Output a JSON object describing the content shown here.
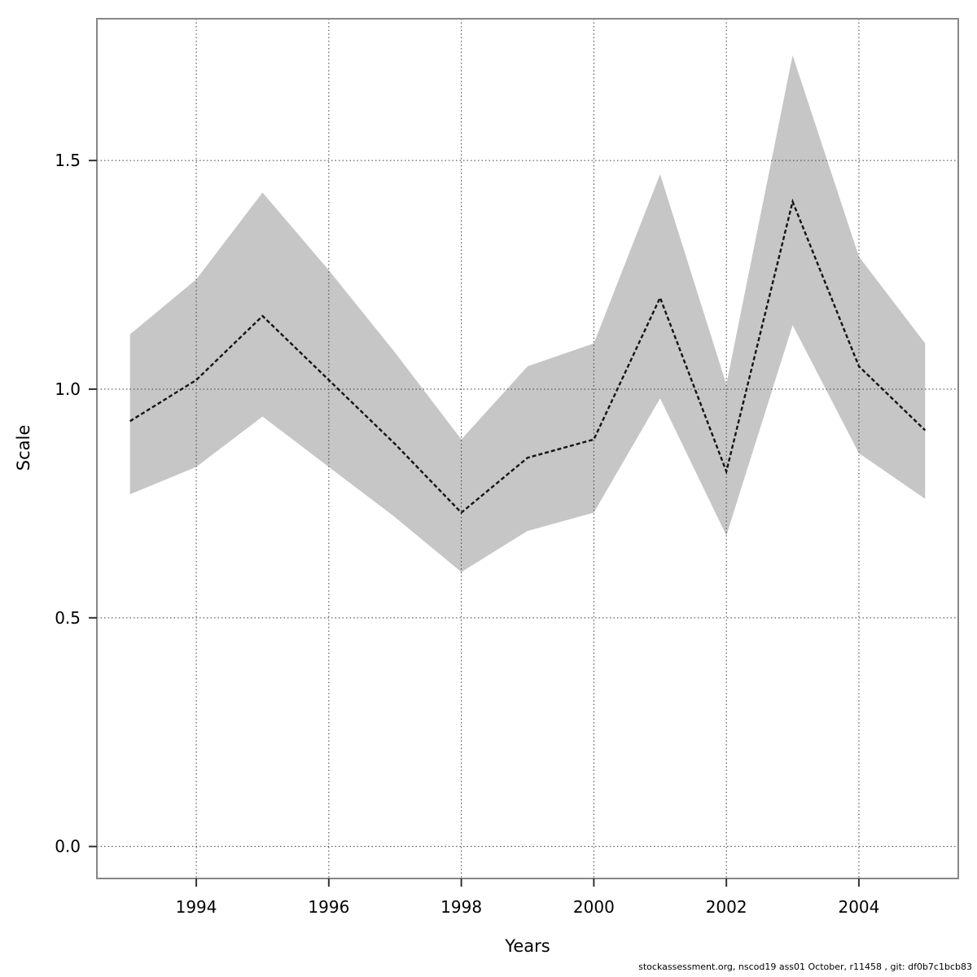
{
  "footer": "stockassessment.org, nscod19 ass01 October, r11458 , git: df0b7c1bcb83",
  "chart_data": {
    "type": "line",
    "title": "",
    "xlabel": "Years",
    "ylabel": "Scale",
    "x": [
      1993,
      1994,
      1995,
      1996,
      1997,
      1998,
      1999,
      2000,
      2001,
      2002,
      2003,
      2004,
      2005
    ],
    "series": [
      {
        "name": "estimate",
        "values": [
          0.93,
          1.02,
          1.16,
          1.02,
          0.88,
          0.73,
          0.85,
          0.89,
          1.2,
          0.82,
          1.41,
          1.05,
          0.91
        ]
      }
    ],
    "band": {
      "name": "confidence-band",
      "upper": [
        1.12,
        1.24,
        1.43,
        1.26,
        1.08,
        0.89,
        1.05,
        1.1,
        1.47,
        1.01,
        1.73,
        1.29,
        1.1
      ],
      "lower": [
        0.77,
        0.83,
        0.94,
        0.83,
        0.72,
        0.6,
        0.69,
        0.73,
        0.98,
        0.68,
        1.14,
        0.86,
        0.76
      ]
    },
    "xticks": [
      "1994",
      "1996",
      "1998",
      "2000",
      "2002",
      "2004"
    ],
    "yticks": [
      "0.0",
      "0.5",
      "1.0",
      "1.5"
    ],
    "xlim": [
      1992.5,
      2005.5
    ],
    "ylim": [
      -0.07,
      1.81
    ],
    "grid": true,
    "legend_position": "none",
    "colors": {
      "band": "#c6c6c6",
      "line": "#141414",
      "grid": "#3a3a3a",
      "frame": "#878787",
      "tick": "#333333",
      "text": "#000000"
    }
  }
}
